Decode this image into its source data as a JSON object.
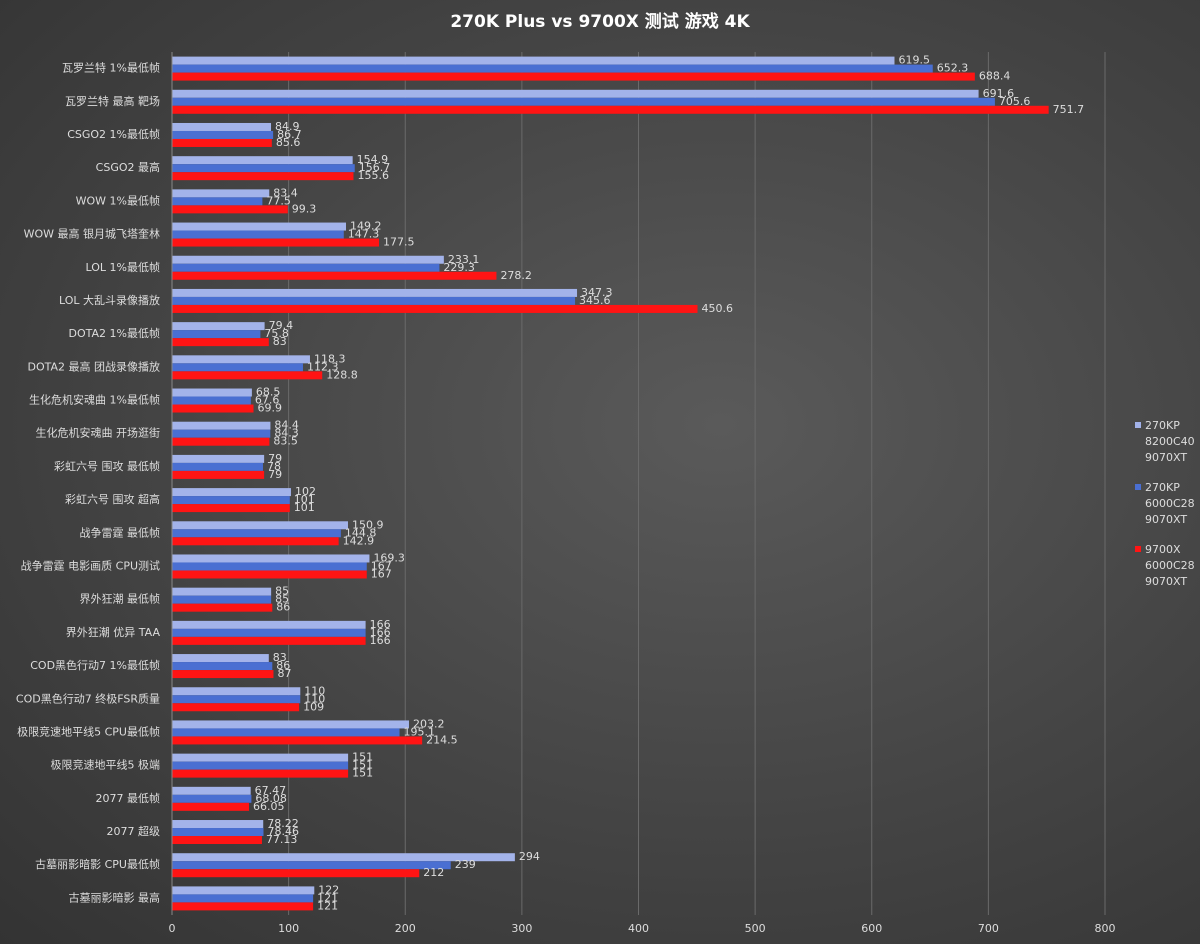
{
  "chart_data": {
    "type": "hbar",
    "title": "270K Plus vs 9700X 测试 游戏 4K",
    "categories": [
      "瓦罗兰特 1%最低帧",
      "瓦罗兰特 最高 靶场",
      "CSGO2 1%最低帧",
      "CSGO2 最高",
      "WOW 1%最低帧",
      "WOW 最高 银月城飞塔奎林",
      "LOL 1%最低帧",
      "LOL 大乱斗录像播放",
      "DOTA2 1%最低帧",
      "DOTA2 最高 团战录像播放",
      "生化危机安魂曲 1%最低帧",
      "生化危机安魂曲 开场逛街",
      "彩虹六号 围攻 最低帧",
      "彩虹六号 围攻 超高",
      "战争雷霆 最低帧",
      "战争雷霆 电影画质 CPU测试",
      "界外狂潮 最低帧",
      "界外狂潮 优异 TAA",
      "COD黑色行动7 1%最低帧",
      "COD黑色行动7 终极FSR质量",
      "极限竞速地平线5 CPU最低帧",
      "极限竞速地平线5 极端",
      "2077 最低帧",
      "2077 超级",
      "古墓丽影暗影 CPU最低帧",
      "古墓丽影暗影 最高"
    ],
    "series": [
      {
        "name": "270KP\n8200C40\n9070XT",
        "color": "#a3b3ea",
        "values": [
          619.5,
          691.6,
          84.9,
          154.9,
          83.4,
          149.2,
          233.1,
          347.3,
          79.4,
          118.3,
          68.5,
          84.4,
          79,
          102,
          150.9,
          169.3,
          85,
          166,
          83,
          110,
          203.2,
          151,
          67.47,
          78.22,
          294,
          122
        ]
      },
      {
        "name": "270KP\n6000C28\n9070XT",
        "color": "#4a6fd2",
        "values": [
          652.3,
          705.6,
          86.7,
          156.7,
          77.5,
          147.3,
          229.3,
          345.6,
          75.8,
          112.3,
          67.6,
          84.3,
          78,
          101,
          144.8,
          167,
          85,
          166,
          86,
          110,
          195.1,
          151,
          68.08,
          78.46,
          239,
          121
        ]
      },
      {
        "name": "9700X\n6000C28\n9070XT",
        "color": "#ff1414",
        "values": [
          688.4,
          751.7,
          85.6,
          155.6,
          99.3,
          177.5,
          278.2,
          450.6,
          83,
          128.8,
          69.9,
          83.5,
          79,
          101,
          142.9,
          167,
          86,
          166,
          87,
          109,
          214.5,
          151,
          66.05,
          77.13,
          212,
          121
        ]
      }
    ],
    "xlim": [
      0,
      800
    ],
    "xticks": [
      0,
      100,
      200,
      300,
      400,
      500,
      600,
      700,
      800
    ],
    "grid": true,
    "legend": "right"
  }
}
